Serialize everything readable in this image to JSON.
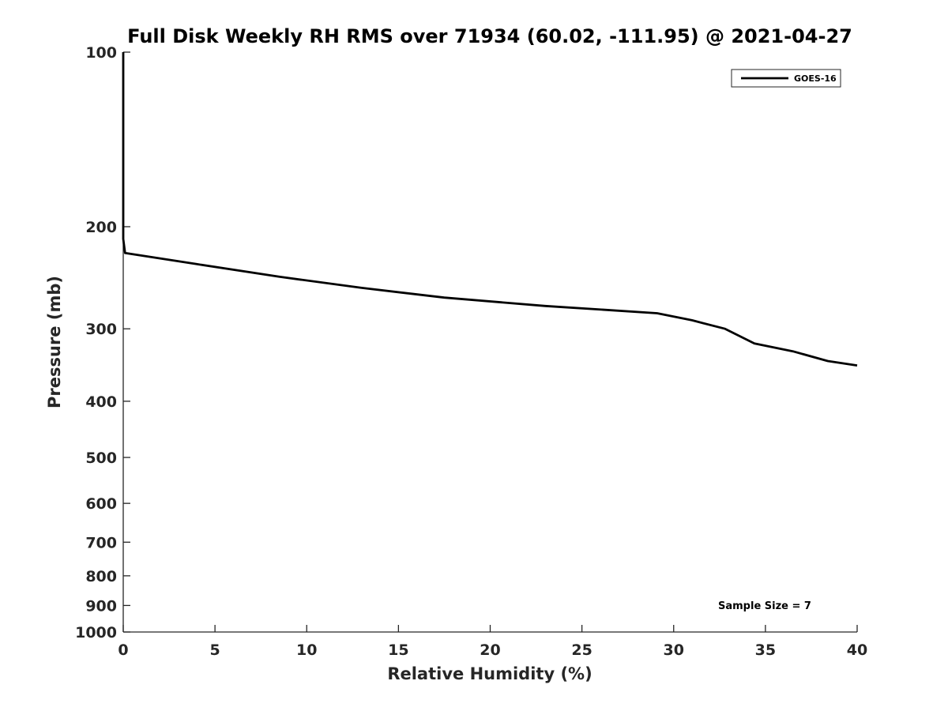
{
  "chart_data": {
    "type": "line",
    "title": "Full Disk Weekly RH RMS over 71934 (60.02, -111.95) @ 2021-04-27",
    "xlabel": "Relative Humidity (%)",
    "ylabel": "Pressure (mb)",
    "xlim": [
      0,
      40
    ],
    "ylim": [
      100,
      1000
    ],
    "yscale": "log",
    "y_reversed": true,
    "grid": false,
    "x_ticks": [
      0,
      5,
      10,
      15,
      20,
      25,
      30,
      35,
      40
    ],
    "x_tick_labels": [
      "0",
      "5",
      "10",
      "15",
      "20",
      "25",
      "30",
      "35",
      "40"
    ],
    "y_ticks": [
      100,
      200,
      300,
      400,
      500,
      600,
      700,
      800,
      900,
      1000
    ],
    "y_tick_labels": [
      "100",
      "200",
      "300",
      "400",
      "500",
      "600",
      "700",
      "800",
      "900",
      "1000"
    ],
    "legend_position": "top-right",
    "series": [
      {
        "name": "GOES-16",
        "color": "#000000",
        "points": [
          {
            "rh": 0.0,
            "p": 100
          },
          {
            "rh": 0.0,
            "p": 150
          },
          {
            "rh": 0.0,
            "p": 200
          },
          {
            "rh": 0.0,
            "p": 210
          },
          {
            "rh": 0.1,
            "p": 222
          },
          {
            "rh": 4.0,
            "p": 232
          },
          {
            "rh": 8.5,
            "p": 244
          },
          {
            "rh": 13.0,
            "p": 255
          },
          {
            "rh": 17.5,
            "p": 265
          },
          {
            "rh": 23.0,
            "p": 274
          },
          {
            "rh": 29.1,
            "p": 282
          },
          {
            "rh": 31.0,
            "p": 290
          },
          {
            "rh": 32.8,
            "p": 300
          },
          {
            "rh": 34.4,
            "p": 318
          },
          {
            "rh": 36.5,
            "p": 328
          },
          {
            "rh": 38.4,
            "p": 341
          },
          {
            "rh": 40.0,
            "p": 347
          }
        ]
      }
    ],
    "annotation": "Sample Size = 7"
  }
}
